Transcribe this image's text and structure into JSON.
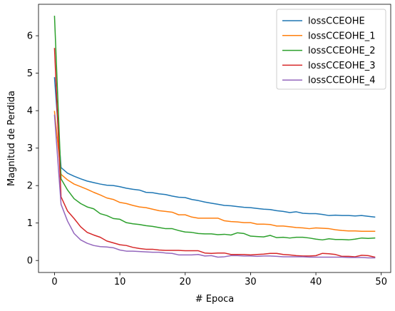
{
  "chart_data": {
    "type": "line",
    "xlabel": "# Epoca",
    "ylabel": "Magnitud de Perdida",
    "xlim": [
      -2.45,
      51.45
    ],
    "ylim": [
      -0.32,
      6.84
    ],
    "xticks": [
      0,
      10,
      20,
      30,
      40,
      50
    ],
    "yticks": [
      0,
      1,
      2,
      3,
      4,
      5,
      6
    ],
    "grid": false,
    "legend_position": "top-right",
    "x": [
      0,
      1,
      2,
      3,
      4,
      5,
      6,
      7,
      8,
      9,
      10,
      11,
      12,
      13,
      14,
      15,
      16,
      17,
      18,
      19,
      20,
      21,
      22,
      23,
      24,
      25,
      26,
      27,
      28,
      29,
      30,
      31,
      32,
      33,
      34,
      35,
      36,
      37,
      38,
      39,
      40,
      41,
      42,
      43,
      44,
      45,
      46,
      47,
      48,
      49
    ],
    "series": [
      {
        "name": "lossCCEOHE",
        "color": "#1f77b4",
        "values": [
          4.88,
          2.48,
          2.33,
          2.25,
          2.18,
          2.12,
          2.08,
          2.04,
          2.01,
          2.0,
          1.97,
          1.93,
          1.9,
          1.88,
          1.82,
          1.81,
          1.78,
          1.76,
          1.72,
          1.69,
          1.68,
          1.63,
          1.6,
          1.56,
          1.53,
          1.5,
          1.47,
          1.46,
          1.44,
          1.42,
          1.41,
          1.39,
          1.37,
          1.36,
          1.33,
          1.31,
          1.28,
          1.3,
          1.26,
          1.25,
          1.25,
          1.23,
          1.2,
          1.21,
          1.2,
          1.2,
          1.19,
          1.2,
          1.18,
          1.16
        ]
      },
      {
        "name": "lossCCEOHE_1",
        "color": "#ff7f0e",
        "values": [
          3.98,
          2.3,
          2.15,
          2.04,
          1.97,
          1.9,
          1.82,
          1.75,
          1.67,
          1.63,
          1.55,
          1.52,
          1.47,
          1.43,
          1.41,
          1.37,
          1.33,
          1.31,
          1.29,
          1.22,
          1.22,
          1.16,
          1.13,
          1.13,
          1.13,
          1.13,
          1.06,
          1.04,
          1.03,
          1.01,
          1.01,
          0.97,
          0.97,
          0.96,
          0.92,
          0.92,
          0.9,
          0.88,
          0.87,
          0.85,
          0.87,
          0.86,
          0.85,
          0.82,
          0.8,
          0.79,
          0.79,
          0.78,
          0.78,
          0.78
        ]
      },
      {
        "name": "lossCCEOHE_2",
        "color": "#2ca02c",
        "values": [
          6.52,
          2.18,
          1.88,
          1.65,
          1.52,
          1.43,
          1.38,
          1.25,
          1.2,
          1.12,
          1.1,
          1.01,
          0.98,
          0.96,
          0.93,
          0.91,
          0.88,
          0.85,
          0.85,
          0.8,
          0.76,
          0.75,
          0.72,
          0.71,
          0.71,
          0.69,
          0.7,
          0.68,
          0.74,
          0.72,
          0.65,
          0.64,
          0.63,
          0.67,
          0.61,
          0.62,
          0.6,
          0.62,
          0.62,
          0.6,
          0.57,
          0.55,
          0.58,
          0.56,
          0.56,
          0.55,
          0.57,
          0.6,
          0.59,
          0.6
        ]
      },
      {
        "name": "lossCCEOHE_3",
        "color": "#d62728",
        "values": [
          5.66,
          1.7,
          1.32,
          1.12,
          0.9,
          0.75,
          0.68,
          0.62,
          0.52,
          0.47,
          0.42,
          0.4,
          0.35,
          0.32,
          0.3,
          0.3,
          0.28,
          0.27,
          0.27,
          0.27,
          0.26,
          0.26,
          0.26,
          0.2,
          0.19,
          0.2,
          0.2,
          0.16,
          0.16,
          0.16,
          0.15,
          0.16,
          0.17,
          0.19,
          0.19,
          0.16,
          0.15,
          0.13,
          0.12,
          0.12,
          0.13,
          0.19,
          0.18,
          0.16,
          0.11,
          0.11,
          0.1,
          0.14,
          0.13,
          0.09
        ]
      },
      {
        "name": "lossCCEOHE_4",
        "color": "#9467bd",
        "values": [
          3.88,
          1.5,
          1.05,
          0.72,
          0.55,
          0.46,
          0.4,
          0.37,
          0.36,
          0.34,
          0.28,
          0.25,
          0.25,
          0.24,
          0.23,
          0.22,
          0.22,
          0.2,
          0.19,
          0.15,
          0.15,
          0.15,
          0.16,
          0.12,
          0.13,
          0.09,
          0.1,
          0.13,
          0.13,
          0.12,
          0.12,
          0.11,
          0.12,
          0.12,
          0.11,
          0.1,
          0.1,
          0.1,
          0.1,
          0.09,
          0.09,
          0.09,
          0.09,
          0.09,
          0.09,
          0.08,
          0.08,
          0.08,
          0.07,
          0.07
        ]
      }
    ]
  }
}
